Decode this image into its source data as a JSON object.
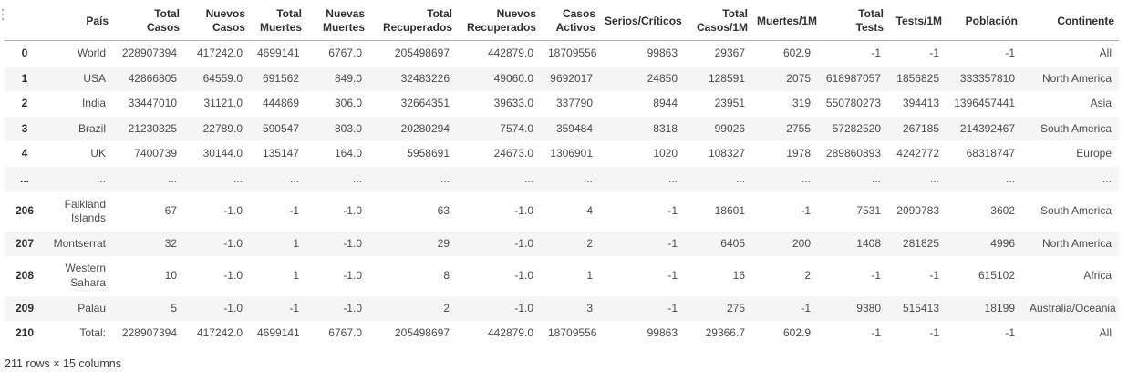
{
  "icons": {
    "gutter": "vertical-ellipsis"
  },
  "table": {
    "index_header": "",
    "columns": [
      "País",
      "Total\nCasos",
      "Nuevos\nCasos",
      "Total\nMuertes",
      "Nuevas\nMuertes",
      "Total\nRecuperados",
      "Nuevos\nRecuperados",
      "Casos\nActivos",
      "Serios/Críticos",
      "Total\nCasos/1M",
      "Muertes/1M",
      "Total\nTests",
      "Tests/1M",
      "Población",
      "Continente"
    ],
    "rows": [
      {
        "index": "0",
        "cells": [
          "World",
          "228907394",
          "417242.0",
          "4699141",
          "6767.0",
          "205498697",
          "442879.0",
          "18709556",
          "99863",
          "29367",
          "602.9",
          "-1",
          "-1",
          "-1",
          "All"
        ]
      },
      {
        "index": "1",
        "cells": [
          "USA",
          "42866805",
          "64559.0",
          "691562",
          "849.0",
          "32483226",
          "49060.0",
          "9692017",
          "24850",
          "128591",
          "2075",
          "618987057",
          "1856825",
          "333357810",
          "North America"
        ]
      },
      {
        "index": "2",
        "cells": [
          "India",
          "33447010",
          "31121.0",
          "444869",
          "306.0",
          "32664351",
          "39633.0",
          "337790",
          "8944",
          "23951",
          "319",
          "550780273",
          "394413",
          "1396457441",
          "Asia"
        ]
      },
      {
        "index": "3",
        "cells": [
          "Brazil",
          "21230325",
          "22789.0",
          "590547",
          "803.0",
          "20280294",
          "7574.0",
          "359484",
          "8318",
          "99026",
          "2755",
          "57282520",
          "267185",
          "214392467",
          "South America"
        ]
      },
      {
        "index": "4",
        "cells": [
          "UK",
          "7400739",
          "30144.0",
          "135147",
          "164.0",
          "5958691",
          "24673.0",
          "1306901",
          "1020",
          "108327",
          "1978",
          "289860893",
          "4242772",
          "68318747",
          "Europe"
        ]
      },
      {
        "index": "...",
        "cells": [
          "...",
          "...",
          "...",
          "...",
          "...",
          "...",
          "...",
          "...",
          "...",
          "...",
          "...",
          "...",
          "...",
          "...",
          "..."
        ]
      },
      {
        "index": "206",
        "cells": [
          "Falkland\nIslands",
          "67",
          "-1.0",
          "-1",
          "-1.0",
          "63",
          "-1.0",
          "4",
          "-1",
          "18601",
          "-1",
          "7531",
          "2090783",
          "3602",
          "South America"
        ]
      },
      {
        "index": "207",
        "cells": [
          "Montserrat",
          "32",
          "-1.0",
          "1",
          "-1.0",
          "29",
          "-1.0",
          "2",
          "-1",
          "6405",
          "200",
          "1408",
          "281825",
          "4996",
          "North America"
        ]
      },
      {
        "index": "208",
        "cells": [
          "Western\nSahara",
          "10",
          "-1.0",
          "1",
          "-1.0",
          "8",
          "-1.0",
          "1",
          "-1",
          "16",
          "2",
          "-1",
          "-1",
          "615102",
          "Africa"
        ]
      },
      {
        "index": "209",
        "cells": [
          "Palau",
          "5",
          "-1.0",
          "-1",
          "-1.0",
          "2",
          "-1.0",
          "3",
          "-1",
          "275",
          "-1",
          "9380",
          "515413",
          "18199",
          "Australia/Oceania"
        ]
      },
      {
        "index": "210",
        "cells": [
          "Total:",
          "228907394",
          "417242.0",
          "4699141",
          "6767.0",
          "205498697",
          "442879.0",
          "18709556",
          "99863",
          "29366.7",
          "602.9",
          "-1",
          "-1",
          "-1",
          "All"
        ]
      }
    ]
  },
  "footer": {
    "text": "211 rows × 15 columns"
  },
  "colors": {
    "background": "#ffffff",
    "stripe": "#f5f5f5",
    "header_border": "#b0b0b0",
    "text": "#4a4a4a",
    "header_text": "#2e2e2e"
  }
}
